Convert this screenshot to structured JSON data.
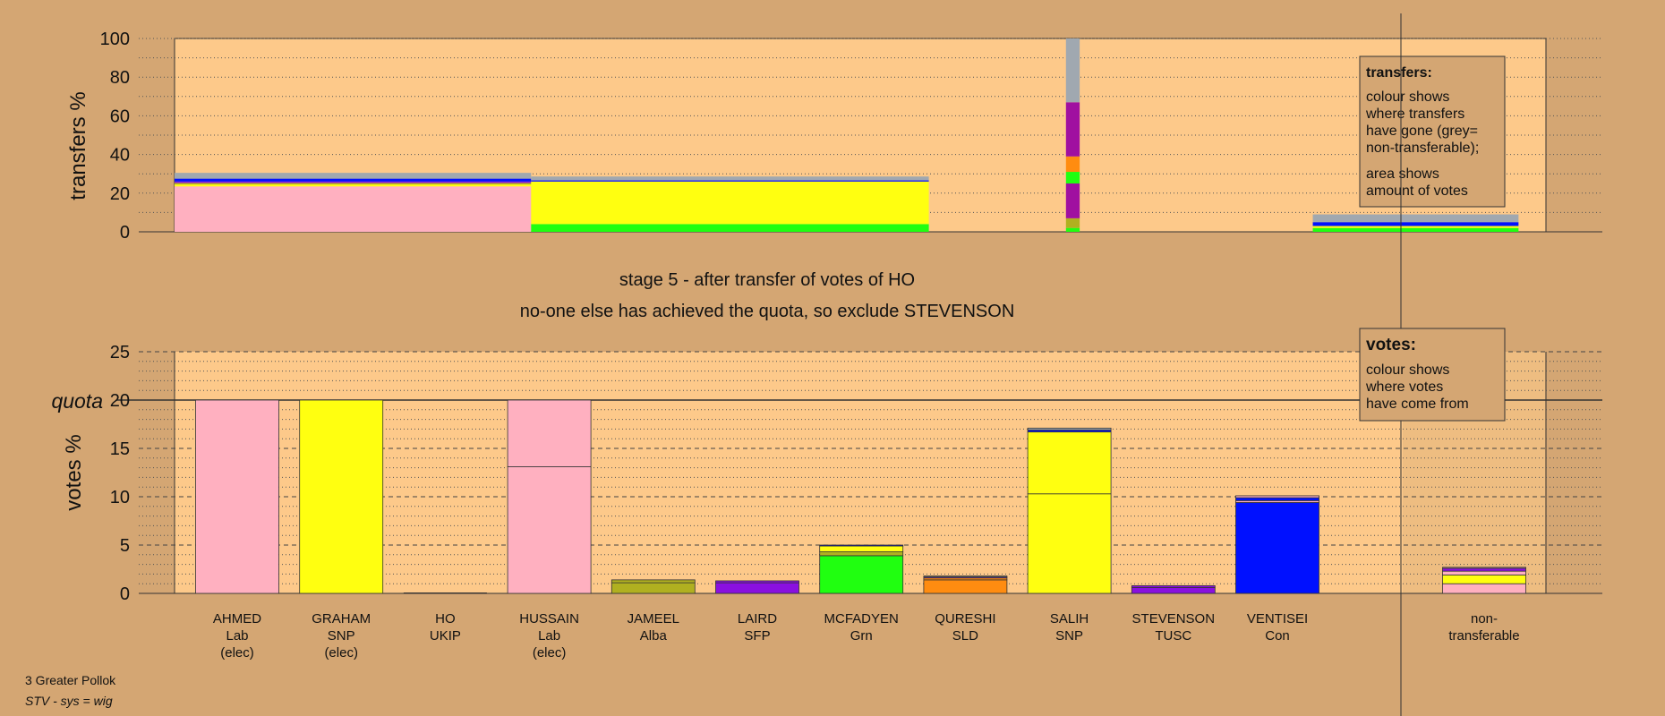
{
  "header": {
    "stage_line": "stage 5 - after transfer of votes of HO",
    "action_line": "no-one else has achieved the quota, so exclude STEVENSON"
  },
  "footer": {
    "ward": "3 Greater Pollok",
    "system": "STV - sys = wig"
  },
  "legend_transfers": {
    "title": "transfers:",
    "text1": [
      "colour shows",
      "where transfers",
      "have gone (grey=",
      "non-transferable);"
    ],
    "text2": [
      "area shows",
      "amount of votes"
    ]
  },
  "legend_votes": {
    "title": "votes:",
    "text": [
      "colour shows",
      "where votes",
      "have come from"
    ]
  },
  "colors": {
    "background": "#d4a673",
    "plot_area": "#fdc98a",
    "Lab": "#ffb0c0",
    "SNP": "#ffff10",
    "Grn": "#20ff10",
    "SFP": "#8a10e0",
    "Alba": "#b0b020",
    "SLD": "#ff8c10",
    "TUSC": "#8a10e0",
    "Con": "#0010ff",
    "UKIP": "#a010a0",
    "nontransferable": "#a0a8b0"
  },
  "chart_data": [
    {
      "type": "bar",
      "name": "transfers",
      "ylabel": "transfers %",
      "ylim": [
        0,
        100
      ],
      "yticks": [
        0,
        20,
        40,
        60,
        80,
        100
      ],
      "grid": "dotted every 10",
      "columns": [
        {
          "start": 0,
          "end": 26,
          "segments": [
            {
              "color": "Lab",
              "value": 23.5
            },
            {
              "color": "SNP",
              "value": 1
            },
            {
              "color": "Alba",
              "value": 0.8
            },
            {
              "color": "SFP",
              "value": 0.7
            },
            {
              "color": "Con",
              "value": 1.5
            },
            {
              "color": "nontransferable",
              "value": 3
            }
          ]
        },
        {
          "start": 26,
          "end": 55,
          "segments": [
            {
              "color": "Grn",
              "value": 4
            },
            {
              "color": "SNP",
              "value": 22
            },
            {
              "color": "Con",
              "value": 0.6
            },
            {
              "color": "nontransferable",
              "value": 2
            }
          ]
        },
        {
          "start": 65,
          "end": 66,
          "segments": [
            {
              "color": "Grn",
              "value": 2
            },
            {
              "color": "Alba",
              "value": 5
            },
            {
              "color": "UKIP",
              "value": 18
            },
            {
              "color": "Grn",
              "value": 6
            },
            {
              "color": "SLD",
              "value": 8
            },
            {
              "color": "UKIP",
              "value": 28
            },
            {
              "color": "nontransferable",
              "value": 33
            }
          ]
        },
        {
          "start": 83,
          "end": 98,
          "segments": [
            {
              "color": "Grn",
              "value": 2
            },
            {
              "color": "SNP",
              "value": 1
            },
            {
              "color": "Con",
              "value": 2
            },
            {
              "color": "nontransferable",
              "value": 4
            }
          ]
        }
      ]
    },
    {
      "type": "bar",
      "name": "votes",
      "ylabel": "votes %",
      "ylim": [
        0,
        25
      ],
      "yticks": [
        0,
        5,
        10,
        15,
        20,
        25
      ],
      "quota": 20,
      "quota_label": "quota",
      "candidates": [
        {
          "name": "AHMED",
          "party": "Lab",
          "status": "(elec)",
          "segments": [
            {
              "color": "Lab",
              "value": 20
            }
          ]
        },
        {
          "name": "GRAHAM",
          "party": "SNP",
          "status": "(elec)",
          "segments": [
            {
              "color": "SNP",
              "value": 20
            }
          ]
        },
        {
          "name": "HO",
          "party": "UKIP",
          "status": "",
          "segments": []
        },
        {
          "name": "HUSSAIN",
          "party": "Lab",
          "status": "(elec)",
          "segments": [
            {
              "color": "Lab",
              "value": 13.1
            },
            {
              "color": "Lab",
              "value": 6.9
            }
          ]
        },
        {
          "name": "JAMEEL",
          "party": "Alba",
          "status": "",
          "segments": [
            {
              "color": "Alba",
              "value": 1.1
            },
            {
              "color": "Alba",
              "value": 0.3
            }
          ]
        },
        {
          "name": "LAIRD",
          "party": "SFP",
          "status": "",
          "segments": [
            {
              "color": "SFP",
              "value": 1.1
            },
            {
              "color": "SFP",
              "value": 0.2
            }
          ]
        },
        {
          "name": "MCFADYEN",
          "party": "Grn",
          "status": "",
          "segments": [
            {
              "color": "Grn",
              "value": 3.9
            },
            {
              "color": "Alba",
              "value": 0.4
            },
            {
              "color": "SNP",
              "value": 0.6
            },
            {
              "color": "Con",
              "value": 0.1
            }
          ]
        },
        {
          "name": "QURESHI",
          "party": "SLD",
          "status": "",
          "segments": [
            {
              "color": "SLD",
              "value": 1.4
            },
            {
              "color": "SLD",
              "value": 0.2
            },
            {
              "color": "SFP",
              "value": 0.1
            },
            {
              "color": "nontransferable",
              "value": 0.1
            }
          ]
        },
        {
          "name": "SALIH",
          "party": "SNP",
          "status": "",
          "segments": [
            {
              "color": "SNP",
              "value": 10.3
            },
            {
              "color": "SNP",
              "value": 6.4
            },
            {
              "color": "Con",
              "value": 0.2
            },
            {
              "color": "nontransferable",
              "value": 0.2
            }
          ]
        },
        {
          "name": "STEVENSON",
          "party": "TUSC",
          "status": "",
          "segments": [
            {
              "color": "TUSC",
              "value": 0.6
            },
            {
              "color": "TUSC",
              "value": 0.2
            }
          ]
        },
        {
          "name": "VENTISEI",
          "party": "Con",
          "status": "",
          "segments": [
            {
              "color": "Con",
              "value": 9.4
            },
            {
              "color": "Lab",
              "value": 0.2
            },
            {
              "color": "Con",
              "value": 0.3
            },
            {
              "color": "Lab",
              "value": 0.2
            }
          ]
        },
        {
          "name": "non-",
          "party": "transferable",
          "status": "",
          "nontransferable": true,
          "segments": [
            {
              "color": "Lab",
              "value": 1.0
            },
            {
              "color": "SNP",
              "value": 0.9
            },
            {
              "color": "Lab",
              "value": 0.4
            },
            {
              "color": "SFP",
              "value": 0.3
            },
            {
              "color": "Lab",
              "value": 0.1
            }
          ]
        }
      ]
    }
  ]
}
